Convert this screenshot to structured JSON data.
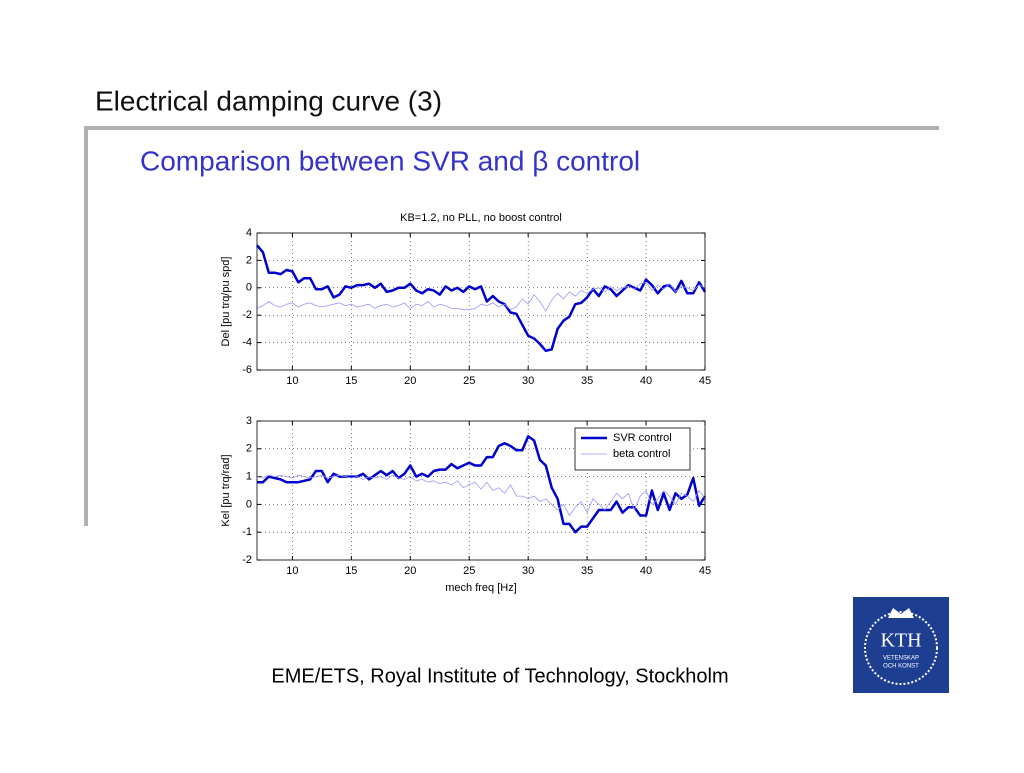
{
  "slide": {
    "title": "Electrical damping curve (3)",
    "subtitle": "Comparison between SVR and β control",
    "footer": "EME/ETS, Royal Institute of Technology, Stockholm",
    "logo": {
      "name": "KTH",
      "line1": "VETENSKAP",
      "line2": "OCH KONST"
    }
  },
  "chart_data": [
    {
      "type": "line",
      "title": "KB=1.2, no PLL, no boost control",
      "ylabel": "Del [pu trq/pu spd]",
      "x": [
        7,
        7.5,
        8,
        8.5,
        9,
        9.5,
        10,
        10.5,
        11,
        11.5,
        12,
        12.5,
        13,
        13.5,
        14,
        14.5,
        15,
        15.5,
        16,
        16.5,
        17,
        17.5,
        18,
        18.5,
        19,
        19.5,
        20,
        20.5,
        21,
        21.5,
        22,
        22.5,
        23,
        23.5,
        24,
        24.5,
        25,
        25.5,
        26,
        26.5,
        27,
        27.5,
        28,
        28.5,
        29,
        29.5,
        30,
        30.5,
        31,
        31.5,
        32,
        32.5,
        33,
        33.5,
        34,
        34.5,
        35,
        35.5,
        36,
        36.5,
        37,
        37.5,
        38,
        38.5,
        39,
        39.5,
        40,
        40.5,
        41,
        41.5,
        42,
        42.5,
        43,
        43.5,
        44,
        44.5,
        45
      ],
      "xlim": [
        7,
        45
      ],
      "xticks": [
        10,
        15,
        20,
        25,
        30,
        35,
        40,
        45
      ],
      "ylim": [
        -6,
        4
      ],
      "yticks": [
        -6,
        -4,
        -2,
        0,
        2,
        4
      ],
      "grid": true,
      "series": [
        {
          "color": "#0000cc",
          "values": [
            3.1,
            2.6,
            1.1,
            1.1,
            1.0,
            1.3,
            1.2,
            0.4,
            0.7,
            0.7,
            -0.1,
            -0.1,
            0.1,
            -0.7,
            -0.5,
            0.1,
            0.0,
            0.2,
            0.2,
            0.3,
            0.0,
            0.3,
            -0.3,
            -0.2,
            0.0,
            0.0,
            0.3,
            -0.2,
            -0.4,
            -0.1,
            -0.2,
            -0.5,
            0.1,
            -0.2,
            0.0,
            -0.3,
            0.1,
            -0.1,
            0.1,
            -1.0,
            -0.6,
            -1.0,
            -1.2,
            -1.8,
            -1.9,
            -2.7,
            -3.5,
            -3.7,
            -4.1,
            -4.6,
            -4.5,
            -3.0,
            -2.4,
            -2.1,
            -1.2,
            -1.1,
            -0.7,
            -0.1,
            -0.6,
            0.1,
            -0.1,
            -0.6,
            -0.2,
            0.2,
            0.0,
            -0.2,
            0.6,
            0.2,
            -0.4,
            0.1,
            0.2,
            -0.3,
            0.5,
            -0.4,
            -0.4,
            0.4,
            -0.3
          ]
        },
        {
          "color": "#9999ff",
          "values": [
            -1.5,
            -1.3,
            -1.0,
            -1.3,
            -1.4,
            -1.2,
            -1.1,
            -1.4,
            -1.2,
            -1.1,
            -1.3,
            -1.4,
            -1.3,
            -1.2,
            -1.1,
            -1.3,
            -1.2,
            -1.4,
            -1.3,
            -1.2,
            -1.5,
            -1.3,
            -1.2,
            -1.4,
            -1.3,
            -1.1,
            -1.5,
            -1.2,
            -1.3,
            -1.0,
            -1.4,
            -1.2,
            -1.3,
            -1.5,
            -1.5,
            -1.6,
            -1.6,
            -1.5,
            -1.2,
            -1.3,
            -1.1,
            -1.4,
            -1.2,
            -1.6,
            -1.4,
            -0.8,
            -1.2,
            -0.5,
            -1.0,
            -1.7,
            -0.9,
            -0.4,
            -0.8,
            -0.3,
            -0.6,
            -0.2,
            -0.4,
            -0.1,
            0.0,
            -0.3,
            0.1,
            -0.2,
            0.0,
            0.1,
            -0.1,
            0.3,
            0.4,
            -0.2,
            0.2,
            -0.1,
            0.3,
            -0.3,
            0.1,
            0.0,
            -0.2,
            0.2,
            0.0
          ]
        }
      ]
    },
    {
      "type": "line",
      "ylabel": "Kel [pu trq/rad]",
      "xlabel": "mech freq [Hz]",
      "x": [
        7,
        7.5,
        8,
        8.5,
        9,
        9.5,
        10,
        10.5,
        11,
        11.5,
        12,
        12.5,
        13,
        13.5,
        14,
        14.5,
        15,
        15.5,
        16,
        16.5,
        17,
        17.5,
        18,
        18.5,
        19,
        19.5,
        20,
        20.5,
        21,
        21.5,
        22,
        22.5,
        23,
        23.5,
        24,
        24.5,
        25,
        25.5,
        26,
        26.5,
        27,
        27.5,
        28,
        28.5,
        29,
        29.5,
        30,
        30.5,
        31,
        31.5,
        32,
        32.5,
        33,
        33.5,
        34,
        34.5,
        35,
        35.5,
        36,
        36.5,
        37,
        37.5,
        38,
        38.5,
        39,
        39.5,
        40,
        40.5,
        41,
        41.5,
        42,
        42.5,
        43,
        43.5,
        44,
        44.5,
        45
      ],
      "xlim": [
        7,
        45
      ],
      "xticks": [
        10,
        15,
        20,
        25,
        30,
        35,
        40,
        45
      ],
      "ylim": [
        -2,
        3
      ],
      "yticks": [
        -2,
        -1,
        0,
        1,
        2,
        3
      ],
      "grid": true,
      "legend": "upper right",
      "series": [
        {
          "name": "SVR control",
          "color": "#0000cc",
          "values": [
            0.8,
            0.8,
            1.0,
            0.95,
            0.9,
            0.8,
            0.8,
            0.8,
            0.85,
            0.9,
            1.2,
            1.2,
            0.8,
            1.1,
            1.0,
            1.0,
            1.0,
            1.0,
            1.1,
            0.9,
            1.05,
            1.2,
            1.05,
            1.2,
            0.95,
            1.1,
            1.4,
            1.0,
            1.1,
            1.0,
            1.2,
            1.25,
            1.25,
            1.45,
            1.3,
            1.4,
            1.5,
            1.4,
            1.4,
            1.7,
            1.7,
            2.1,
            2.2,
            2.1,
            1.95,
            1.95,
            2.45,
            2.3,
            1.6,
            1.4,
            0.6,
            0.2,
            -0.7,
            -0.7,
            -1.0,
            -0.8,
            -0.8,
            -0.5,
            -0.2,
            -0.2,
            -0.2,
            0.1,
            -0.3,
            -0.1,
            -0.1,
            -0.4,
            -0.4,
            0.5,
            -0.2,
            0.4,
            -0.2,
            0.4,
            0.2,
            0.35,
            0.95,
            -0.05,
            0.3
          ]
        },
        {
          "name": "beta control",
          "color": "#9999ff",
          "values": [
            1.0,
            0.95,
            1.05,
            1.0,
            1.05,
            1.0,
            0.95,
            1.05,
            1.0,
            0.95,
            1.0,
            1.05,
            0.95,
            1.0,
            1.05,
            1.0,
            0.95,
            1.0,
            0.9,
            1.0,
            0.95,
            1.0,
            0.9,
            1.05,
            0.95,
            0.9,
            1.0,
            0.85,
            0.9,
            0.8,
            0.85,
            0.75,
            0.8,
            0.7,
            0.85,
            0.6,
            0.7,
            0.8,
            0.55,
            0.8,
            0.5,
            0.6,
            0.4,
            0.7,
            0.3,
            0.3,
            0.2,
            0.3,
            0.1,
            0.2,
            0.0,
            -0.2,
            0.0,
            -0.4,
            -0.1,
            0.1,
            -0.3,
            0.2,
            0.0,
            -0.2,
            0.1,
            0.4,
            0.2,
            0.4,
            -0.2,
            0.3,
            0.5,
            0.0,
            0.2,
            0.5,
            0.3,
            0.0,
            0.4,
            0.3,
            0.1,
            0.5,
            0.2
          ]
        }
      ]
    }
  ]
}
